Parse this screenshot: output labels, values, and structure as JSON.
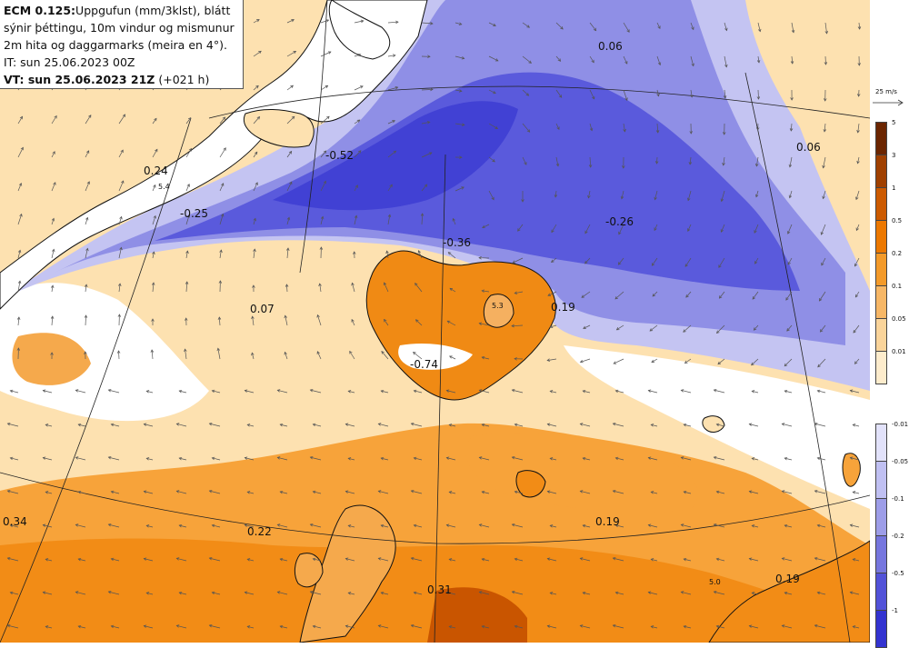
{
  "info": {
    "model_bold": "ECM 0.125:",
    "line1_rest": "Uppgufun (mm/3klst), blátt",
    "line2": "sýnir þéttingu, 10m vindur og mismunur",
    "line3": "2m hita og daggarmarks (meira en 4°).",
    "it_line": "IT: sun 25.06.2023 00Z",
    "vt_bold": "VT: sun 25.06.2023 21Z",
    "vt_suffix": "(+021 h)"
  },
  "values": {
    "v1": "0.06",
    "v2": "-0.52",
    "v3": "0.06",
    "v4": "0.24",
    "v5": "5.4",
    "v6": "-0.25",
    "v7": "-0.36",
    "v8": "-0.26",
    "v9": "0.07",
    "v10": "0.19",
    "v11": "-0.74",
    "v12": "5.3",
    "v13": "0.34",
    "v14": "0.22",
    "v15": "0.19",
    "v16": "0.31",
    "v17": "5.0",
    "v18": "0.19"
  },
  "wind_scale_label": "25 m/s",
  "legend": {
    "evaporation": {
      "ticks": [
        "5",
        "3",
        "1",
        "0.5",
        "0.2",
        "0.1",
        "0.05",
        "0.01"
      ],
      "colors": [
        "#6b2500",
        "#a04000",
        "#cc5a00",
        "#ec7800",
        "#f39a2a",
        "#f7b766",
        "#fad49a",
        "#fdeccc"
      ]
    },
    "condensation": {
      "ticks": [
        "-0.01",
        "-0.05",
        "-0.1",
        "-0.2",
        "-0.5",
        "-1"
      ],
      "colors": [
        "#e2e2fa",
        "#c0c0f2",
        "#9d9de8",
        "#7676de",
        "#5252d8",
        "#3333d0"
      ]
    }
  }
}
